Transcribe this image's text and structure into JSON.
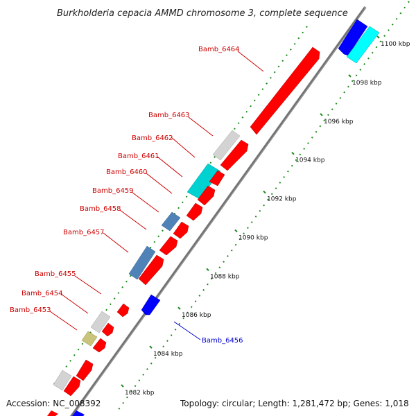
{
  "title": "Burkholderia cepacia AMMD chromosome 3, complete sequence",
  "footer": {
    "accession": "Accession: NC_008392",
    "topology": "Topology: circular; Length: 1,281,472 bp; Genes: 1,018"
  },
  "colors": {
    "backbone": "#8e8e8e",
    "tick": "#1a8a1a",
    "forward_label": "#cc0000",
    "reverse_label": "#0000cc",
    "red": "#ff0000",
    "gray": "#d3d3d3",
    "cyan": "#00d2d2",
    "steel": "#4f83b8",
    "blue": "#0000ff",
    "aqua": "#00ffff",
    "olive": "#c9c47a"
  },
  "ticks": [
    {
      "kbp": 1082,
      "label": "1082 kbp"
    },
    {
      "kbp": 1084,
      "label": "1084 kbp"
    },
    {
      "kbp": 1086,
      "label": "1086 kbp"
    },
    {
      "kbp": 1088,
      "label": "1088 kbp"
    },
    {
      "kbp": 1090,
      "label": "1090 kbp"
    },
    {
      "kbp": 1092,
      "label": "1092 kbp"
    },
    {
      "kbp": 1094,
      "label": "1094 kbp"
    },
    {
      "kbp": 1096,
      "label": "1096 kbp"
    },
    {
      "kbp": 1098,
      "label": "1098 kbp"
    },
    {
      "kbp": 1100,
      "label": "1100 kbp"
    }
  ],
  "labels": [
    {
      "text": "Bamb_6464",
      "strand": "forward"
    },
    {
      "text": "Bamb_6463",
      "strand": "forward"
    },
    {
      "text": "Bamb_6462",
      "strand": "forward"
    },
    {
      "text": "Bamb_6461",
      "strand": "forward"
    },
    {
      "text": "Bamb_6460",
      "strand": "forward"
    },
    {
      "text": "Bamb_6459",
      "strand": "forward"
    },
    {
      "text": "Bamb_6458",
      "strand": "forward"
    },
    {
      "text": "Bamb_6457",
      "strand": "forward"
    },
    {
      "text": "Bamb_6455",
      "strand": "forward"
    },
    {
      "text": "Bamb_6454",
      "strand": "forward"
    },
    {
      "text": "Bamb_6453",
      "strand": "forward"
    },
    {
      "text": "Bamb_6456",
      "strand": "reverse"
    }
  ]
}
